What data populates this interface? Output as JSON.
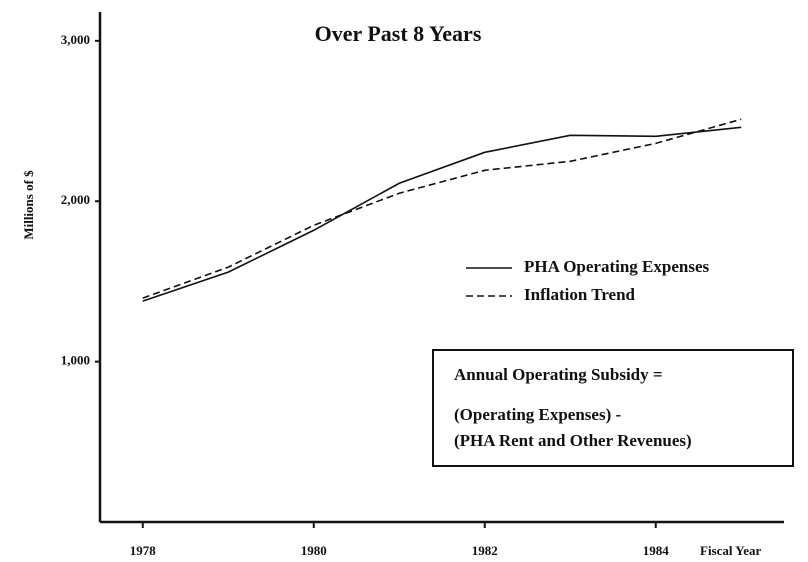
{
  "chart_data": {
    "type": "line",
    "title": "Over Past 8 Years",
    "y_label": "Millions of $",
    "x_label": "Fiscal Year",
    "x": [
      1978,
      1979,
      1980,
      1981,
      1982,
      1983,
      1984,
      1985
    ],
    "series": [
      {
        "name": "PHA Operating Expenses",
        "color": "#111111",
        "dash": "solid",
        "values": [
          1377,
          1558,
          1819,
          2112,
          2305,
          2411,
          2405,
          2461
        ]
      },
      {
        "name": "Inflation Trend",
        "color": "#111111",
        "dash": "dashed",
        "values": [
          1396,
          1589,
          1850,
          2050,
          2193,
          2249,
          2361,
          2511
        ]
      }
    ],
    "xlim": [
      1977.5,
      1985.5
    ],
    "xticks": [
      1978,
      1980,
      1982,
      1984
    ],
    "ylim": [
      0,
      3180
    ],
    "yticks": [
      {
        "value": 1000,
        "label": "1,000"
      },
      {
        "value": 2000,
        "label": "2,000"
      },
      {
        "value": 3000,
        "label": "3,000"
      }
    ],
    "annotation": [
      "Annual Operating Subsidy =",
      "(Operating Expenses) -",
      "(PHA Rent and Other Revenues)"
    ],
    "grid": false,
    "legend_position": "right"
  }
}
